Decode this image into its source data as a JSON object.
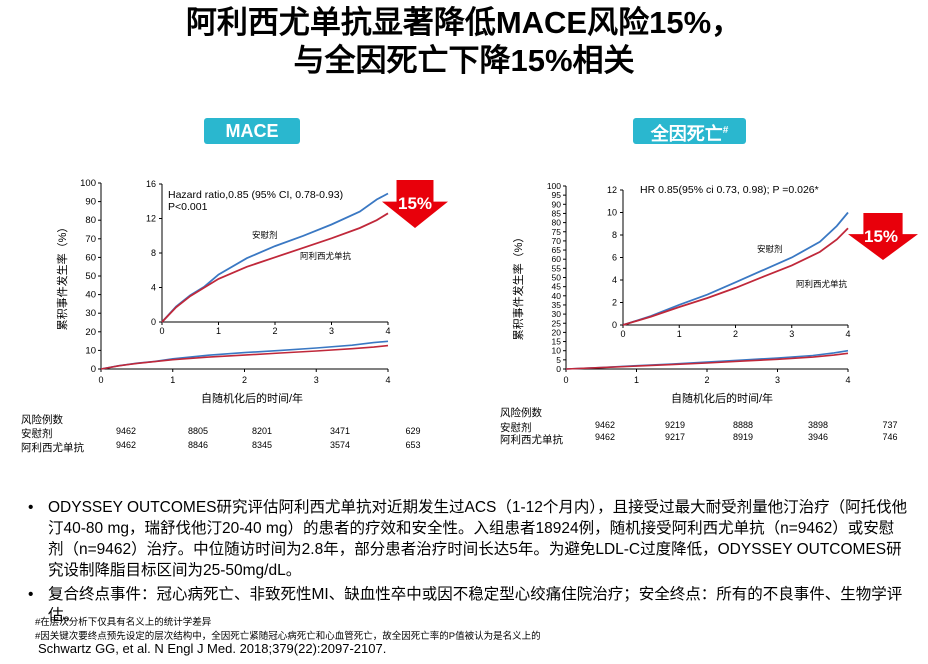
{
  "title": {
    "line1": "阿利西尤单抗显著降低MACE风险15%，",
    "line2": "与全因死亡下降15%相关"
  },
  "colors": {
    "placebo": "#3a78c3",
    "alirocumab": "#c0283a",
    "arrow": "#e8000b",
    "label_bg": "#2ab7cf"
  },
  "chart_data": [
    {
      "type": "line",
      "panel_label": "MACE",
      "xlabel": "自随机化后的时间/年",
      "ylabel": "累积事件发生率（%）",
      "x_ticks": [
        "0",
        "1",
        "2",
        "3",
        "4"
      ],
      "y_ticks": [
        "0",
        "10",
        "20",
        "30",
        "40",
        "50",
        "60",
        "70",
        "80",
        "90",
        "100"
      ],
      "ylim": [
        0,
        100
      ],
      "xlim": [
        0,
        4
      ],
      "inset": {
        "annotation_line1": "Hazard ratio,0.85 (95% CI, 0.78-0.93)",
        "annotation_line2": "P<0.001",
        "y_ticks": [
          "0",
          "4",
          "8",
          "12",
          "16"
        ],
        "x_ticks": [
          "0",
          "1",
          "2",
          "3",
          "4"
        ],
        "ylim": [
          0,
          16
        ],
        "label_placebo": "安慰剂",
        "label_alirocumab": "阿利西尤单抗"
      },
      "badge": "15%",
      "series": [
        {
          "name": "安慰剂",
          "x": [
            0,
            0.25,
            0.5,
            0.75,
            1,
            1.5,
            2,
            2.5,
            3,
            3.5,
            3.8,
            4
          ],
          "y": [
            0,
            1.8,
            3.1,
            4.1,
            5.5,
            7.4,
            8.8,
            10.0,
            11.3,
            12.8,
            14.2,
            14.9
          ]
        },
        {
          "name": "阿利西尤单抗",
          "x": [
            0,
            0.25,
            0.5,
            0.75,
            1,
            1.5,
            2,
            2.5,
            3,
            3.5,
            3.8,
            4
          ],
          "y": [
            0,
            1.7,
            3.0,
            4.0,
            5.0,
            6.4,
            7.5,
            8.6,
            9.7,
            10.9,
            11.8,
            12.6
          ]
        }
      ],
      "risk_table": {
        "title": "风险例数",
        "rows": [
          {
            "label": "安慰剂",
            "values": [
              "9462",
              "8805",
              "8201",
              "3471",
              "629"
            ]
          },
          {
            "label": "阿利西尤单抗",
            "values": [
              "9462",
              "8846",
              "8345",
              "3574",
              "653"
            ]
          }
        ]
      }
    },
    {
      "type": "line",
      "panel_label": "全因死亡",
      "panel_label_sup": "#",
      "xlabel": "自随机化后的时间/年",
      "ylabel": "累积事件发生率（%）",
      "x_ticks": [
        "0",
        "1",
        "2",
        "3",
        "4"
      ],
      "y_ticks": [
        "0",
        "5",
        "10",
        "15",
        "20",
        "25",
        "30",
        "35",
        "40",
        "45",
        "50",
        "55",
        "60",
        "65",
        "70",
        "75",
        "80",
        "85",
        "90",
        "95",
        "100"
      ],
      "ylim": [
        0,
        100
      ],
      "xlim": [
        0,
        4
      ],
      "inset": {
        "annotation_line1": "HR 0.85(95% ci 0.73, 0.98); P =0.026*",
        "y_ticks": [
          "0",
          "2",
          "4",
          "6",
          "8",
          "10",
          "12"
        ],
        "x_ticks": [
          "0",
          "1",
          "2",
          "3",
          "4"
        ],
        "ylim": [
          0,
          12
        ],
        "label_placebo": "安慰剂",
        "label_alirocumab": "阿利西尤单抗"
      },
      "badge": "15%",
      "series": [
        {
          "name": "安慰剂",
          "x": [
            0,
            0.5,
            1,
            1.5,
            2,
            2.5,
            3,
            3.5,
            3.8,
            4
          ],
          "y": [
            0,
            0.8,
            1.8,
            2.7,
            3.8,
            4.9,
            6.0,
            7.4,
            8.8,
            10.0
          ]
        },
        {
          "name": "阿利西尤单抗",
          "x": [
            0,
            0.5,
            1,
            1.5,
            2,
            2.5,
            3,
            3.5,
            3.8,
            4
          ],
          "y": [
            0,
            0.75,
            1.6,
            2.4,
            3.3,
            4.3,
            5.3,
            6.5,
            7.6,
            8.6
          ]
        }
      ],
      "risk_table": {
        "title": "风险例数",
        "rows": [
          {
            "label": "安慰剂",
            "values": [
              "9462",
              "9219",
              "8888",
              "3898",
              "737"
            ]
          },
          {
            "label": "阿利西尤单抗",
            "values": [
              "9462",
              "9217",
              "8919",
              "3946",
              "746"
            ]
          }
        ]
      }
    }
  ],
  "bullets": [
    "ODYSSEY OUTCOMES研究评估阿利西尤单抗对近期发生过ACS（1-12个月内），且接受过最大耐受剂量他汀治疗（阿托伐他汀40-80 mg，瑞舒伐他汀20-40 mg）的患者的疗效和安全性。入组患者18924例，随机接受阿利西尤单抗（n=9462）或安慰剂（n=9462）治疗。中位随访时间为2.8年，部分患者治疗时间长达5年。为避免LDL-C过度降低，ODYSSEY OUTCOMES研究设制降脂目标区间为25-50mg/dL。",
    "复合终点事件：冠心病死亡、非致死性MI、缺血性卒中或因不稳定型心绞痛住院治疗；安全终点：所有的不良事件、生物学评估。"
  ],
  "footnotes": [
    "#在层次分析下仅具有名义上的统计学差异",
    "#因关键次要终点预先设定的层次结构中，全因死亡紧随冠心病死亡和心血管死亡，故全因死亡率的P值被认为是名义上的"
  ],
  "reference": "Schwartz GG, et al. N Engl J Med. 2018;379(22):2097-2107."
}
